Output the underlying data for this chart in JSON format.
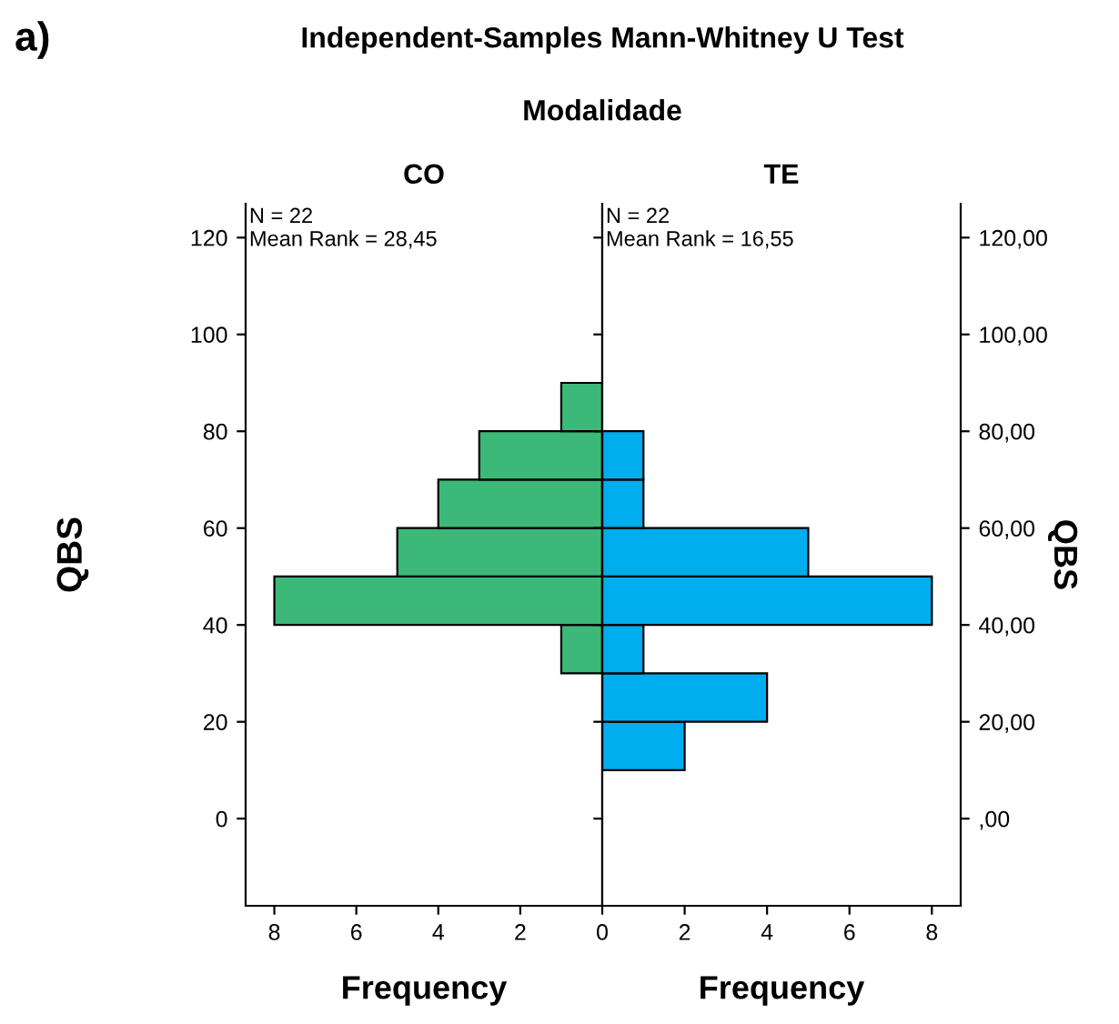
{
  "chart_data": [
    {
      "type": "histogram",
      "orientation": "horizontal",
      "title": "CO",
      "xlabel": "Frequency",
      "ylabel": "QBS",
      "annotations": [
        "a)",
        "Independent-Samples Mann-Whitney U Test",
        "Modalidade",
        "N = 22",
        "Mean Rank = 28,45"
      ],
      "bins": [
        30,
        40,
        50,
        60,
        70,
        80,
        90
      ],
      "values": [
        1,
        8,
        5,
        4,
        3,
        1
      ],
      "color": "#3cb878",
      "xlim": [
        8.7,
        0
      ],
      "xticks": [
        8,
        6,
        4,
        2,
        0
      ],
      "ylim": [
        -18,
        127
      ],
      "yticks": [
        0,
        20,
        40,
        60,
        80,
        100,
        120
      ],
      "grid": false,
      "legend": false
    },
    {
      "type": "histogram",
      "orientation": "horizontal",
      "title": "TE",
      "xlabel": "Frequency",
      "ylabel": "QBS",
      "annotations": [
        "N = 22",
        "Mean Rank = 16,55"
      ],
      "bins": [
        10,
        20,
        30,
        40,
        50,
        60,
        70,
        80
      ],
      "values": [
        2,
        4,
        1,
        8,
        5,
        1,
        1
      ],
      "color": "#00adee",
      "xlim": [
        0,
        8.7
      ],
      "xticks": [
        2,
        4,
        6,
        8
      ],
      "ylim": [
        -18,
        127
      ],
      "yticks": [
        {
          "value": 0,
          "label": ",00"
        },
        {
          "value": 20,
          "label": "20,00"
        },
        {
          "value": 40,
          "label": "40,00"
        },
        {
          "value": 60,
          "label": "60,00"
        },
        {
          "value": 80,
          "label": "80,00"
        },
        {
          "value": 100,
          "label": "100,00"
        },
        {
          "value": 120,
          "label": "120,00"
        }
      ],
      "grid": false,
      "legend": false
    }
  ]
}
